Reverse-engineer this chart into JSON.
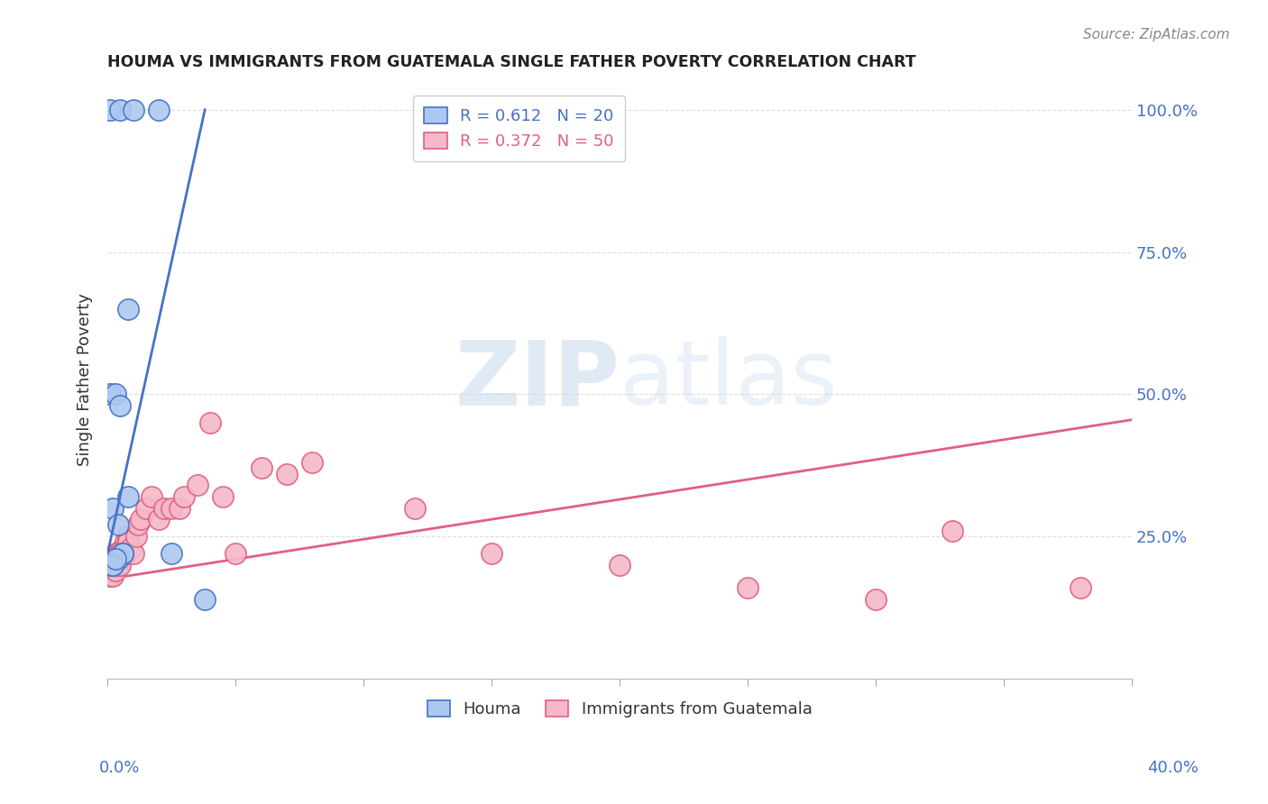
{
  "title": "HOUMA VS IMMIGRANTS FROM GUATEMALA SINGLE FATHER POVERTY CORRELATION CHART",
  "source": "Source: ZipAtlas.com",
  "ylabel": "Single Father Poverty",
  "xlim": [
    0.0,
    0.4
  ],
  "ylim": [
    0.0,
    1.05
  ],
  "legend_blue_text": "R = 0.612   N = 20",
  "legend_pink_text": "R = 0.372   N = 50",
  "watermark": "ZIPatlas",
  "blue_scatter_color": "#adc8f0",
  "blue_edge_color": "#4472c4",
  "pink_scatter_color": "#f4b8c8",
  "pink_edge_color": "#e06080",
  "blue_line_color": "#4472c4",
  "pink_line_color": "#e06080",
  "houma_x": [
    0.001,
    0.005,
    0.01,
    0.02,
    0.001,
    0.003,
    0.005,
    0.008,
    0.002,
    0.004,
    0.006,
    0.008,
    0.002,
    0.004,
    0.006,
    0.001,
    0.002,
    0.003,
    0.025,
    0.038
  ],
  "houma_y": [
    1.0,
    1.0,
    1.0,
    1.0,
    0.5,
    0.5,
    0.48,
    0.65,
    0.3,
    0.27,
    0.22,
    0.32,
    0.2,
    0.21,
    0.22,
    0.2,
    0.2,
    0.21,
    0.22,
    0.14
  ],
  "blue_line_x": [
    0.0,
    0.038
  ],
  "blue_line_y": [
    0.22,
    1.0
  ],
  "pink_line_x": [
    0.0,
    0.4
  ],
  "pink_line_y": [
    0.175,
    0.455
  ],
  "guatemala_x": [
    0.001,
    0.001,
    0.001,
    0.002,
    0.002,
    0.002,
    0.002,
    0.003,
    0.003,
    0.003,
    0.003,
    0.004,
    0.004,
    0.004,
    0.005,
    0.005,
    0.005,
    0.006,
    0.006,
    0.007,
    0.007,
    0.007,
    0.008,
    0.008,
    0.009,
    0.01,
    0.011,
    0.012,
    0.013,
    0.015,
    0.017,
    0.02,
    0.022,
    0.025,
    0.028,
    0.03,
    0.035,
    0.04,
    0.045,
    0.05,
    0.06,
    0.07,
    0.08,
    0.12,
    0.15,
    0.2,
    0.25,
    0.3,
    0.33,
    0.38
  ],
  "guatemala_y": [
    0.2,
    0.19,
    0.18,
    0.21,
    0.2,
    0.19,
    0.18,
    0.22,
    0.21,
    0.2,
    0.19,
    0.22,
    0.21,
    0.2,
    0.22,
    0.21,
    0.2,
    0.23,
    0.22,
    0.24,
    0.23,
    0.22,
    0.25,
    0.24,
    0.23,
    0.22,
    0.25,
    0.27,
    0.28,
    0.3,
    0.32,
    0.28,
    0.3,
    0.3,
    0.3,
    0.32,
    0.34,
    0.45,
    0.32,
    0.22,
    0.37,
    0.36,
    0.38,
    0.3,
    0.22,
    0.2,
    0.16,
    0.14,
    0.26,
    0.16
  ]
}
